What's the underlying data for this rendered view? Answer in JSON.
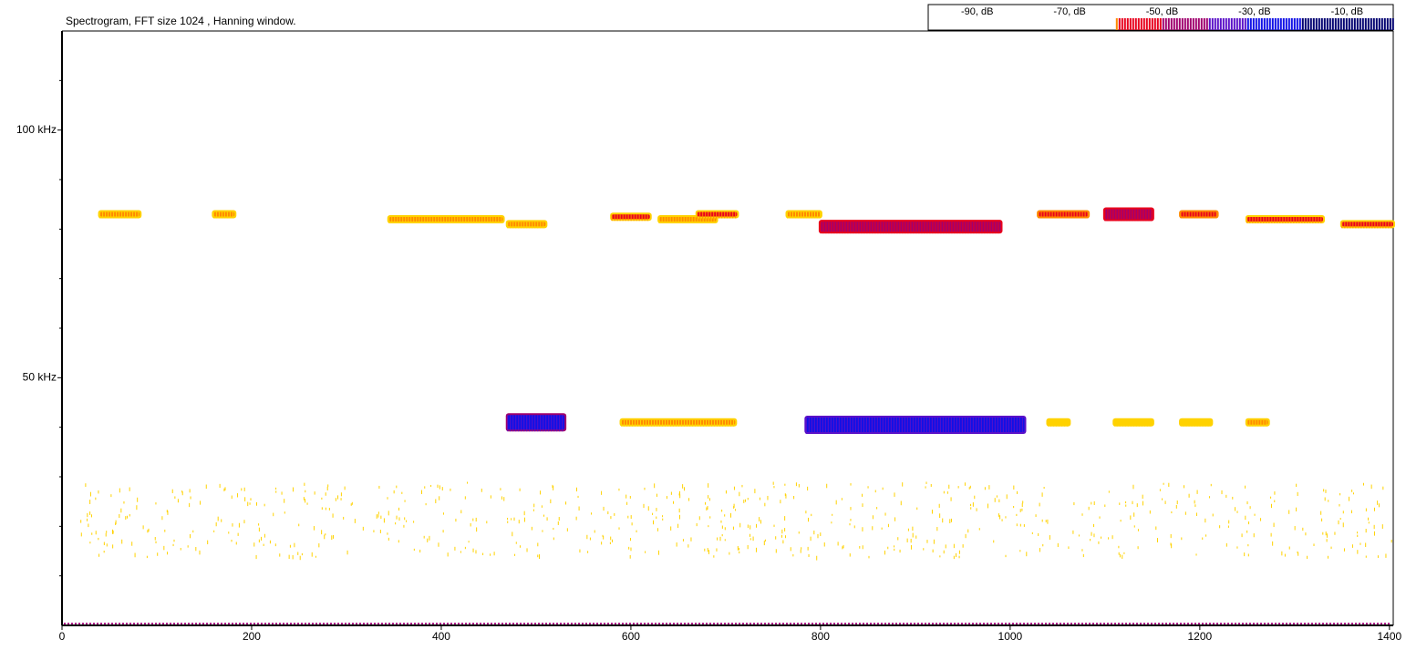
{
  "chart_data": {
    "type": "spectrogram",
    "title": "Spectrogram, FFT size 1024 , Hanning window.",
    "xlim": [
      0,
      1404
    ],
    "xticks": [
      0,
      200,
      400,
      600,
      800,
      1000,
      1200,
      1400
    ],
    "ylim": [
      0,
      120
    ],
    "yticks": [
      {
        "value": 50,
        "label": "50 kHz"
      },
      {
        "value": 100,
        "label": "100 kHz"
      }
    ],
    "yminor": [
      10,
      20,
      30,
      40,
      60,
      70,
      80,
      90,
      110
    ],
    "colorbar": {
      "lim": [
        -100,
        0
      ],
      "ticks": [
        {
          "value": -90,
          "label": "-90, dB"
        },
        {
          "value": -70,
          "label": "-70, dB"
        },
        {
          "value": -50,
          "label": "-50, dB"
        },
        {
          "value": -30,
          "label": "-30, dB"
        },
        {
          "value": -10,
          "label": "-10, dB"
        }
      ],
      "start": -60
    },
    "colormap": [
      {
        "db": -100,
        "color": "#ffd200"
      },
      {
        "db": -70,
        "color": "#ff8a00"
      },
      {
        "db": -60,
        "color": "#e8001c"
      },
      {
        "db": -50,
        "color": "#a0006e"
      },
      {
        "db": -40,
        "color": "#5a10c8"
      },
      {
        "db": -32,
        "color": "#1010e6"
      },
      {
        "db": -20,
        "color": "#000070"
      }
    ],
    "noise": {
      "khz": [
        14,
        29
      ],
      "db": -75
    },
    "calls": [
      {
        "x": [
          40,
          82
        ],
        "khz": 83,
        "db": -62
      },
      {
        "x": [
          160,
          182
        ],
        "khz": 83,
        "db": -62
      },
      {
        "x": [
          345,
          465
        ],
        "khz": 82,
        "db": -64
      },
      {
        "x": [
          470,
          510
        ],
        "khz": 81,
        "db": -70
      },
      {
        "x": [
          470,
          530
        ],
        "khz": 41,
        "db": -30
      },
      {
        "x": [
          580,
          620
        ],
        "khz": 82.5,
        "db": -60
      },
      {
        "x": [
          630,
          690
        ],
        "khz": 82,
        "db": -66
      },
      {
        "x": [
          670,
          712
        ],
        "khz": 83,
        "db": -60
      },
      {
        "x": [
          590,
          710
        ],
        "khz": 41,
        "db": -68
      },
      {
        "x": [
          765,
          800
        ],
        "khz": 83,
        "db": -62
      },
      {
        "x": [
          800,
          990
        ],
        "khz": 80.5,
        "db": -45
      },
      {
        "x": [
          785,
          1015
        ],
        "khz": 40.5,
        "db": -25
      },
      {
        "x": [
          1030,
          1082
        ],
        "khz": 83,
        "db": -55
      },
      {
        "x": [
          1100,
          1150
        ],
        "khz": 83,
        "db": -45
      },
      {
        "x": [
          1180,
          1218
        ],
        "khz": 83,
        "db": -55
      },
      {
        "x": [
          1250,
          1330
        ],
        "khz": 82,
        "db": -56
      },
      {
        "x": [
          1350,
          1404
        ],
        "khz": 81,
        "db": -56
      },
      {
        "x": [
          1040,
          1062
        ],
        "khz": 41,
        "db": -72
      },
      {
        "x": [
          1110,
          1150
        ],
        "khz": 41,
        "db": -72
      },
      {
        "x": [
          1180,
          1212
        ],
        "khz": 41,
        "db": -72
      },
      {
        "x": [
          1250,
          1272
        ],
        "khz": 41,
        "db": -66
      }
    ]
  }
}
